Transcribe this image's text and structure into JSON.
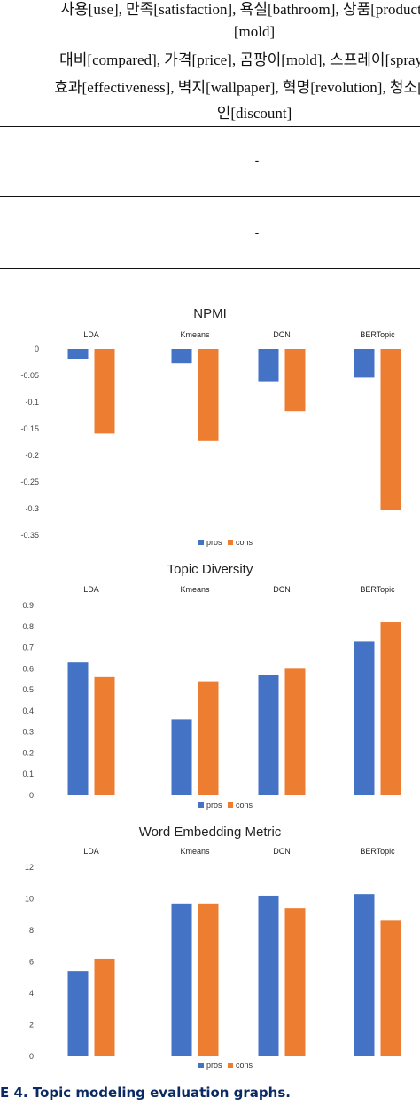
{
  "table": {
    "row1_line1": "사용[use], 만족[satisfaction], 욕실[bathroom], 상품[product], 곰",
    "row1_line2": "[mold]",
    "row2_line1": "대비[compared], 가격[price], 곰팡이[mold], 스프레이[spray], 뿌",
    "row2_line2": "효과[effectiveness], 벽지[wallpaper], 혁명[revolution], 청소[clean",
    "row2_line3": "인[discount]",
    "row3": "-",
    "row4": "-"
  },
  "colors": {
    "pros": "#4472c4",
    "cons": "#ed7d31"
  },
  "chart_data": [
    {
      "type": "bar",
      "title": "NPMI",
      "categories": [
        "LDA",
        "Kmeans",
        "DCN",
        "BERTopic"
      ],
      "series": [
        {
          "name": "pros",
          "values": [
            -0.02,
            -0.027,
            -0.061,
            -0.054
          ]
        },
        {
          "name": "cons",
          "values": [
            -0.159,
            -0.173,
            -0.117,
            -0.303
          ]
        }
      ],
      "ylim": [
        -0.35,
        0
      ],
      "yticks": [
        0,
        -0.05,
        -0.1,
        -0.15,
        -0.2,
        -0.25,
        -0.3,
        -0.35
      ],
      "ytick_labels": [
        "0",
        "-0.05",
        "-0.1",
        "-0.15",
        "-0.2",
        "-0.25",
        "-0.3",
        "-0.35"
      ],
      "category_labels_position": "top",
      "legend": "bottom",
      "grid": false
    },
    {
      "type": "bar",
      "title": "Topic Diversity",
      "categories": [
        "LDA",
        "Kmeans",
        "DCN",
        "BERTopic"
      ],
      "series": [
        {
          "name": "pros",
          "values": [
            0.63,
            0.36,
            0.57,
            0.73
          ]
        },
        {
          "name": "cons",
          "values": [
            0.56,
            0.54,
            0.6,
            0.82
          ]
        }
      ],
      "ylim": [
        0,
        0.9
      ],
      "yticks": [
        0,
        0.1,
        0.2,
        0.3,
        0.4,
        0.5,
        0.6,
        0.7,
        0.8,
        0.9
      ],
      "ytick_labels": [
        "0",
        "0.1",
        "0.2",
        "0.3",
        "0.4",
        "0.5",
        "0.6",
        "0.7",
        "0.8",
        "0.9"
      ],
      "category_labels_position": "top",
      "legend": "bottom",
      "grid": false
    },
    {
      "type": "bar",
      "title": "Word Embedding Metric",
      "categories": [
        "LDA",
        "Kmeans",
        "DCN",
        "BERTopic"
      ],
      "series": [
        {
          "name": "pros",
          "values": [
            5.4,
            9.7,
            10.2,
            10.3
          ]
        },
        {
          "name": "cons",
          "values": [
            6.2,
            9.7,
            9.4,
            8.6
          ]
        }
      ],
      "ylim": [
        0,
        12
      ],
      "yticks": [
        0,
        2,
        4,
        6,
        8,
        10,
        12
      ],
      "ytick_labels": [
        "0",
        "2",
        "4",
        "6",
        "8",
        "10",
        "12"
      ],
      "category_labels_position": "top",
      "legend": "bottom",
      "grid": false
    }
  ],
  "caption": "E 4.  Topic modeling evaluation graphs."
}
